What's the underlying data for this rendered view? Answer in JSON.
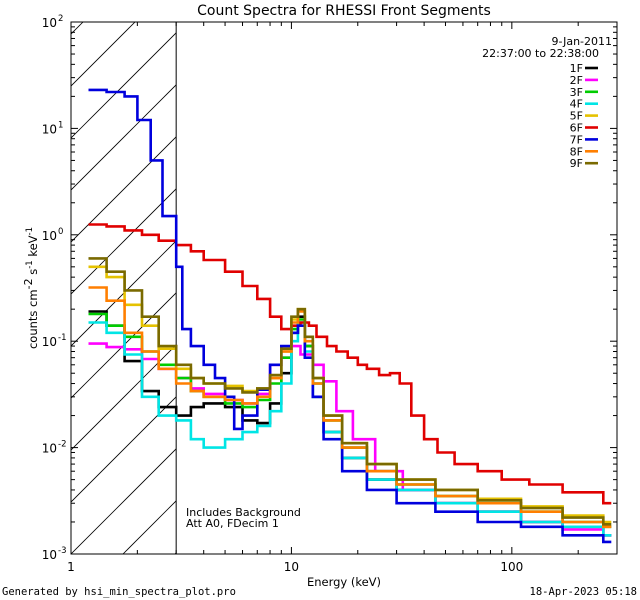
{
  "chart_data": {
    "type": "line",
    "title": "Count Spectra for RHESSI Front Segments",
    "xlabel": "Energy (keV)",
    "ylabel_parts": [
      "counts cm",
      "-2",
      " s",
      "-1",
      " keV",
      "-1"
    ],
    "x_scale": "log",
    "y_scale": "log",
    "xlim": [
      1,
      300
    ],
    "ylim": [
      0.001,
      100
    ],
    "x_ticks": [
      {
        "value": 1,
        "label": "1"
      },
      {
        "value": 10,
        "label": "10"
      },
      {
        "value": 100,
        "label": "100"
      }
    ],
    "y_ticks": [
      {
        "value": 0.001,
        "base": "10",
        "exp": "-3"
      },
      {
        "value": 0.01,
        "base": "10",
        "exp": "-2"
      },
      {
        "value": 0.1,
        "base": "10",
        "exp": "-1"
      },
      {
        "value": 1,
        "base": "10",
        "exp": "0"
      },
      {
        "value": 10,
        "base": "10",
        "exp": "1"
      },
      {
        "value": 100,
        "base": "10",
        "exp": "2"
      }
    ],
    "hatched_region": {
      "x_from": 1,
      "x_to": 3
    },
    "date": "9-Jan-2011",
    "time_range": "22:37:00 to 22:38:00",
    "legend_position": "top-right",
    "annotations": [
      "Includes Background",
      "Att A0, FDecim 1"
    ],
    "series": [
      {
        "name": "1F",
        "color": "#000000",
        "points": [
          [
            1.2,
            0.19
          ],
          [
            1.45,
            0.14
          ],
          [
            1.75,
            0.065
          ],
          [
            2.1,
            0.034
          ],
          [
            2.5,
            0.024
          ],
          [
            3.0,
            0.02
          ],
          [
            3.5,
            0.024
          ],
          [
            4.0,
            0.026
          ],
          [
            5.0,
            0.024
          ],
          [
            6.0,
            0.018
          ],
          [
            7.0,
            0.017
          ],
          [
            8.0,
            0.026
          ],
          [
            9.0,
            0.05
          ],
          [
            10.0,
            0.12
          ],
          [
            10.7,
            0.17
          ],
          [
            11.5,
            0.09
          ],
          [
            12.5,
            0.03
          ],
          [
            14.0,
            0.014
          ],
          [
            17.0,
            0.008
          ],
          [
            22.0,
            0.005
          ],
          [
            30.0,
            0.004
          ],
          [
            45.0,
            0.003
          ],
          [
            70.0,
            0.0025
          ],
          [
            110.0,
            0.002
          ],
          [
            170.0,
            0.0018
          ],
          [
            260.0,
            0.0015
          ]
        ]
      },
      {
        "name": "2F",
        "color": "#ff00ff",
        "points": [
          [
            1.2,
            0.095
          ],
          [
            1.45,
            0.088
          ],
          [
            1.75,
            0.084
          ],
          [
            2.1,
            0.068
          ],
          [
            2.5,
            0.055
          ],
          [
            3.0,
            0.045
          ],
          [
            3.5,
            0.036
          ],
          [
            4.0,
            0.032
          ],
          [
            5.0,
            0.028
          ],
          [
            6.0,
            0.026
          ],
          [
            7.0,
            0.032
          ],
          [
            8.0,
            0.06
          ],
          [
            9.0,
            0.07
          ],
          [
            10.0,
            0.09
          ],
          [
            11.0,
            0.075
          ],
          [
            12.5,
            0.06
          ],
          [
            14.0,
            0.042
          ],
          [
            16.0,
            0.022
          ],
          [
            19.0,
            0.012
          ],
          [
            24.0,
            0.006
          ],
          [
            32.0,
            0.004
          ],
          [
            45.0,
            0.003
          ],
          [
            70.0,
            0.0025
          ],
          [
            110.0,
            0.002
          ],
          [
            170.0,
            0.0017
          ],
          [
            260.0,
            0.0015
          ]
        ]
      },
      {
        "name": "3F",
        "color": "#00cc00",
        "points": [
          [
            1.2,
            0.18
          ],
          [
            1.45,
            0.14
          ],
          [
            1.75,
            0.11
          ],
          [
            2.1,
            0.08
          ],
          [
            2.5,
            0.06
          ],
          [
            3.0,
            0.045
          ],
          [
            3.5,
            0.034
          ],
          [
            4.0,
            0.03
          ],
          [
            5.0,
            0.026
          ],
          [
            6.0,
            0.024
          ],
          [
            7.0,
            0.028
          ],
          [
            8.0,
            0.04
          ],
          [
            9.0,
            0.07
          ],
          [
            10.0,
            0.13
          ],
          [
            10.7,
            0.16
          ],
          [
            11.5,
            0.09
          ],
          [
            12.5,
            0.04
          ],
          [
            14.0,
            0.018
          ],
          [
            17.0,
            0.01
          ],
          [
            22.0,
            0.006
          ],
          [
            30.0,
            0.0045
          ],
          [
            45.0,
            0.0035
          ],
          [
            70.0,
            0.003
          ],
          [
            110.0,
            0.0025
          ],
          [
            170.0,
            0.002
          ],
          [
            260.0,
            0.0018
          ]
        ]
      },
      {
        "name": "4F",
        "color": "#00e5e5",
        "points": [
          [
            1.2,
            0.15
          ],
          [
            1.45,
            0.12
          ],
          [
            1.75,
            0.075
          ],
          [
            2.1,
            0.03
          ],
          [
            2.5,
            0.02
          ],
          [
            3.0,
            0.018
          ],
          [
            3.5,
            0.012
          ],
          [
            4.0,
            0.01
          ],
          [
            5.0,
            0.012
          ],
          [
            6.0,
            0.014
          ],
          [
            7.0,
            0.016
          ],
          [
            8.0,
            0.022
          ],
          [
            9.0,
            0.04
          ],
          [
            10.0,
            0.1
          ],
          [
            10.7,
            0.15
          ],
          [
            11.5,
            0.08
          ],
          [
            12.5,
            0.03
          ],
          [
            14.0,
            0.014
          ],
          [
            17.0,
            0.008
          ],
          [
            22.0,
            0.005
          ],
          [
            30.0,
            0.004
          ],
          [
            45.0,
            0.003
          ],
          [
            70.0,
            0.0025
          ],
          [
            110.0,
            0.002
          ],
          [
            170.0,
            0.0018
          ],
          [
            260.0,
            0.0015
          ]
        ]
      },
      {
        "name": "5F",
        "color": "#e5c200",
        "points": [
          [
            1.2,
            0.5
          ],
          [
            1.45,
            0.4
          ],
          [
            1.75,
            0.22
          ],
          [
            2.1,
            0.14
          ],
          [
            2.5,
            0.085
          ],
          [
            3.0,
            0.055
          ],
          [
            3.5,
            0.045
          ],
          [
            4.0,
            0.04
          ],
          [
            5.0,
            0.038
          ],
          [
            6.0,
            0.034
          ],
          [
            7.0,
            0.036
          ],
          [
            8.0,
            0.045
          ],
          [
            9.0,
            0.08
          ],
          [
            10.0,
            0.16
          ],
          [
            10.7,
            0.2
          ],
          [
            11.5,
            0.11
          ],
          [
            12.5,
            0.045
          ],
          [
            14.0,
            0.02
          ],
          [
            17.0,
            0.011
          ],
          [
            22.0,
            0.007
          ],
          [
            30.0,
            0.005
          ],
          [
            45.0,
            0.004
          ],
          [
            70.0,
            0.0033
          ],
          [
            110.0,
            0.0028
          ],
          [
            170.0,
            0.0023
          ],
          [
            260.0,
            0.002
          ]
        ]
      },
      {
        "name": "6F",
        "color": "#e00000",
        "points": [
          [
            1.2,
            1.25
          ],
          [
            1.45,
            1.2
          ],
          [
            1.75,
            1.1
          ],
          [
            2.1,
            1.0
          ],
          [
            2.5,
            0.88
          ],
          [
            3.0,
            0.8
          ],
          [
            3.5,
            0.7
          ],
          [
            4.0,
            0.58
          ],
          [
            5.0,
            0.45
          ],
          [
            6.0,
            0.33
          ],
          [
            7.0,
            0.25
          ],
          [
            8.0,
            0.17
          ],
          [
            9.0,
            0.13
          ],
          [
            10.0,
            0.14
          ],
          [
            11.0,
            0.15
          ],
          [
            12.0,
            0.14
          ],
          [
            13.0,
            0.11
          ],
          [
            14.5,
            0.09
          ],
          [
            16.0,
            0.08
          ],
          [
            18.0,
            0.07
          ],
          [
            20.0,
            0.06
          ],
          [
            22.0,
            0.055
          ],
          [
            25.0,
            0.048
          ],
          [
            28.0,
            0.05
          ],
          [
            31.0,
            0.04
          ],
          [
            35.0,
            0.02
          ],
          [
            40.0,
            0.012
          ],
          [
            46.0,
            0.009
          ],
          [
            55.0,
            0.007
          ],
          [
            70.0,
            0.006
          ],
          [
            90.0,
            0.005
          ],
          [
            120.0,
            0.0045
          ],
          [
            170.0,
            0.0038
          ],
          [
            260.0,
            0.003
          ]
        ]
      },
      {
        "name": "7F",
        "color": "#0000dd",
        "points": [
          [
            1.2,
            23
          ],
          [
            1.45,
            22
          ],
          [
            1.75,
            20
          ],
          [
            2.0,
            12
          ],
          [
            2.3,
            5
          ],
          [
            2.6,
            1.5
          ],
          [
            3.0,
            0.5
          ],
          [
            3.2,
            0.13
          ],
          [
            3.5,
            0.09
          ],
          [
            4.0,
            0.06
          ],
          [
            4.5,
            0.045
          ],
          [
            5.0,
            0.03
          ],
          [
            5.5,
            0.015
          ],
          [
            6.0,
            0.02
          ],
          [
            7.0,
            0.035
          ],
          [
            8.0,
            0.06
          ],
          [
            9.0,
            0.09
          ],
          [
            10.0,
            0.12
          ],
          [
            10.7,
            0.14
          ],
          [
            11.5,
            0.07
          ],
          [
            12.5,
            0.03
          ],
          [
            14.0,
            0.012
          ],
          [
            17.0,
            0.006
          ],
          [
            22.0,
            0.004
          ],
          [
            30.0,
            0.003
          ],
          [
            45.0,
            0.0025
          ],
          [
            70.0,
            0.002
          ],
          [
            110.0,
            0.0018
          ],
          [
            170.0,
            0.0015
          ],
          [
            260.0,
            0.0013
          ]
        ]
      },
      {
        "name": "8F",
        "color": "#ff7f00",
        "points": [
          [
            1.2,
            0.32
          ],
          [
            1.45,
            0.24
          ],
          [
            1.75,
            0.12
          ],
          [
            2.1,
            0.08
          ],
          [
            2.5,
            0.055
          ],
          [
            3.0,
            0.04
          ],
          [
            3.5,
            0.034
          ],
          [
            4.0,
            0.03
          ],
          [
            5.0,
            0.028
          ],
          [
            6.0,
            0.026
          ],
          [
            7.0,
            0.03
          ],
          [
            8.0,
            0.045
          ],
          [
            9.0,
            0.08
          ],
          [
            10.0,
            0.15
          ],
          [
            10.7,
            0.19
          ],
          [
            11.5,
            0.1
          ],
          [
            12.5,
            0.04
          ],
          [
            14.0,
            0.018
          ],
          [
            17.0,
            0.01
          ],
          [
            22.0,
            0.006
          ],
          [
            30.0,
            0.0045
          ],
          [
            45.0,
            0.0035
          ],
          [
            70.0,
            0.003
          ],
          [
            110.0,
            0.0025
          ],
          [
            170.0,
            0.002
          ],
          [
            260.0,
            0.0018
          ]
        ]
      },
      {
        "name": "9F",
        "color": "#7a6a00",
        "points": [
          [
            1.2,
            0.6
          ],
          [
            1.45,
            0.45
          ],
          [
            1.75,
            0.3
          ],
          [
            2.1,
            0.17
          ],
          [
            2.5,
            0.09
          ],
          [
            3.0,
            0.06
          ],
          [
            3.5,
            0.045
          ],
          [
            4.0,
            0.04
          ],
          [
            5.0,
            0.036
          ],
          [
            6.0,
            0.033
          ],
          [
            7.0,
            0.036
          ],
          [
            8.0,
            0.048
          ],
          [
            9.0,
            0.085
          ],
          [
            10.0,
            0.17
          ],
          [
            10.7,
            0.2
          ],
          [
            11.5,
            0.11
          ],
          [
            12.5,
            0.045
          ],
          [
            14.0,
            0.02
          ],
          [
            17.0,
            0.011
          ],
          [
            22.0,
            0.007
          ],
          [
            30.0,
            0.005
          ],
          [
            45.0,
            0.004
          ],
          [
            70.0,
            0.0032
          ],
          [
            110.0,
            0.0027
          ],
          [
            170.0,
            0.0022
          ],
          [
            260.0,
            0.0019
          ]
        ]
      }
    ]
  },
  "footer": {
    "generated_by": "Generated by hsi_min_spectra_plot.pro",
    "generated_at": "18-Apr-2023 05:18"
  }
}
